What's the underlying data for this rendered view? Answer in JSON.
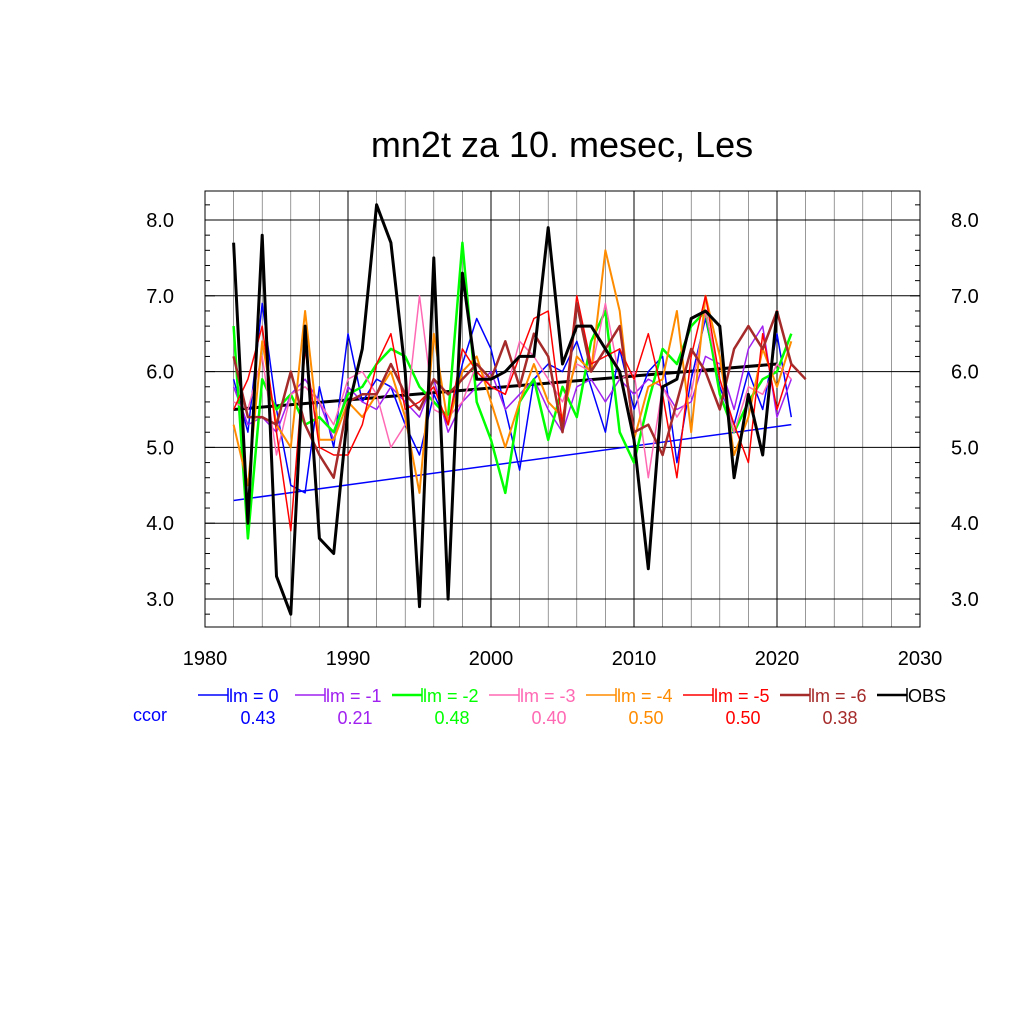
{
  "chart_data": {
    "type": "line",
    "title": "mn2t za 10. mesec, Les",
    "xlim": [
      1980,
      2030
    ],
    "ylim": [
      2.7,
      8.3
    ],
    "x_ticks": [
      "1980",
      "1990",
      "2000",
      "2010",
      "2020",
      "2030"
    ],
    "y_ticks": [
      "3.0",
      "4.0",
      "5.0",
      "6.0",
      "7.0",
      "8.0"
    ],
    "grid": true,
    "legend_position": "bottom",
    "ccor_label": "ccor",
    "ccor_color": "#0000ff",
    "series": [
      {
        "name": "lm = 0",
        "color": "#0000ff",
        "ccor": "0.43",
        "width": 1.5,
        "start": 1982,
        "values": [
          5.9,
          5.2,
          6.9,
          5.5,
          4.5,
          4.4,
          5.8,
          5.0,
          6.5,
          5.6,
          5.9,
          5.8,
          5.3,
          4.9,
          5.7,
          5.3,
          6.1,
          6.7,
          6.3,
          5.5,
          4.7,
          5.9,
          6.1,
          6.0,
          6.4,
          5.8,
          5.2,
          6.3,
          5.5,
          6.0,
          6.2,
          4.8,
          5.9,
          6.7,
          5.8,
          5.3,
          6.0,
          5.5,
          6.5,
          5.4
        ]
      },
      {
        "name": "lm = -1",
        "color": "#a020f0",
        "ccor": "0.21",
        "width": 1.5,
        "start": 1982,
        "values": [
          5.8,
          5.3,
          5.4,
          5.2,
          5.7,
          5.9,
          5.6,
          5.1,
          5.8,
          5.6,
          5.5,
          5.8,
          5.6,
          5.4,
          5.9,
          5.2,
          5.6,
          5.8,
          6.0,
          5.5,
          5.7,
          5.9,
          5.5,
          5.2,
          5.8,
          5.9,
          5.6,
          5.9,
          5.7,
          5.9,
          5.8,
          5.5,
          5.6,
          6.2,
          6.1,
          5.5,
          6.3,
          6.6,
          5.4,
          5.9
        ]
      },
      {
        "name": "lm = -2",
        "color": "#00ff00",
        "ccor": "0.48",
        "width": 2.5,
        "start": 1982,
        "values": [
          6.6,
          3.8,
          5.9,
          5.5,
          5.7,
          5.3,
          5.4,
          5.2,
          5.7,
          5.8,
          6.1,
          6.3,
          6.2,
          5.8,
          5.6,
          5.4,
          7.7,
          5.6,
          5.1,
          4.4,
          5.6,
          5.9,
          5.1,
          5.8,
          5.4,
          6.4,
          6.8,
          5.2,
          4.8,
          5.6,
          6.3,
          6.1,
          6.6,
          6.8,
          5.7,
          5.2,
          5.6,
          5.9,
          6.0,
          6.5
        ]
      },
      {
        "name": "lm = -3",
        "color": "#ff69b4",
        "ccor": "0.40",
        "width": 1.5,
        "start": 1982,
        "values": [
          5.6,
          5.5,
          6.2,
          4.9,
          5.7,
          5.8,
          5.6,
          5.3,
          5.9,
          6.0,
          5.7,
          5.0,
          5.3,
          7.0,
          5.5,
          5.4,
          5.6,
          6.1,
          5.8,
          5.7,
          6.4,
          6.2,
          5.9,
          5.6,
          6.1,
          6.0,
          6.9,
          5.9,
          6.0,
          4.6,
          5.8,
          5.4,
          5.7,
          6.8,
          5.9,
          5.2,
          5.8,
          5.7,
          6.1,
          5.9
        ]
      },
      {
        "name": "lm = -4",
        "color": "#ff8c00",
        "ccor": "0.50",
        "width": 2,
        "start": 1982,
        "values": [
          5.3,
          4.5,
          6.4,
          5.3,
          5.0,
          6.8,
          5.1,
          5.1,
          5.6,
          5.4,
          5.7,
          6.0,
          5.4,
          4.4,
          6.5,
          5.3,
          6.0,
          6.2,
          5.6,
          5.0,
          5.6,
          6.1,
          5.6,
          5.4,
          6.2,
          6.0,
          7.6,
          6.8,
          5.1,
          5.8,
          5.9,
          6.8,
          5.2,
          7.0,
          6.2,
          4.9,
          5.4,
          6.3,
          5.8,
          6.4
        ]
      },
      {
        "name": "lm = -5",
        "color": "#ff0000",
        "ccor": "0.50",
        "width": 1.5,
        "start": 1982,
        "values": [
          5.5,
          5.9,
          6.6,
          5.2,
          3.9,
          6.3,
          5.0,
          4.9,
          4.9,
          5.3,
          6.1,
          6.5,
          5.5,
          5.6,
          5.8,
          5.3,
          6.3,
          6.0,
          5.8,
          5.7,
          6.2,
          6.7,
          6.8,
          5.3,
          7.0,
          6.1,
          6.2,
          6.3,
          5.9,
          6.5,
          5.7,
          4.6,
          6.2,
          7.0,
          5.9,
          5.3,
          4.8,
          6.5,
          5.5,
          6.1
        ]
      },
      {
        "name": "lm = -6",
        "color": "#a52a2a",
        "ccor": "0.38",
        "width": 2.5,
        "start": 1982,
        "values": [
          6.2,
          5.4,
          5.4,
          5.3,
          6.0,
          5.3,
          4.9,
          4.6,
          5.6,
          5.7,
          5.7,
          6.1,
          5.7,
          5.5,
          5.9,
          5.7,
          5.9,
          6.1,
          5.9,
          6.4,
          5.8,
          6.5,
          6.2,
          5.2,
          6.9,
          6.0,
          6.3,
          6.6,
          5.2,
          5.3,
          4.9,
          5.6,
          6.3,
          6.0,
          5.5,
          6.3,
          6.6,
          6.3,
          6.8,
          6.1,
          5.9
        ]
      },
      {
        "name": "OBS",
        "color": "#000000",
        "ccor": "",
        "width": 3,
        "start": 1982,
        "values": [
          7.7,
          4.0,
          7.8,
          3.3,
          2.8,
          6.6,
          3.8,
          3.6,
          5.5,
          6.3,
          8.2,
          7.7,
          6.0,
          2.9,
          7.5,
          3.0,
          7.3,
          5.9,
          5.9,
          6.0,
          6.2,
          6.2,
          7.9,
          6.1,
          6.6,
          6.6,
          6.3,
          6.0,
          5.1,
          3.4,
          5.8,
          5.9,
          6.7,
          6.8,
          6.6,
          4.6,
          5.7,
          4.9,
          6.8
        ]
      }
    ],
    "trend_lines": [
      {
        "name": "trend-lm-0",
        "color": "#0000ff",
        "width": 1.5,
        "x": [
          1982,
          2021
        ],
        "y": [
          4.3,
          5.3
        ]
      },
      {
        "name": "trend-obs",
        "color": "#000000",
        "width": 3,
        "x": [
          1982,
          2020
        ],
        "y": [
          5.5,
          6.1
        ]
      }
    ]
  }
}
